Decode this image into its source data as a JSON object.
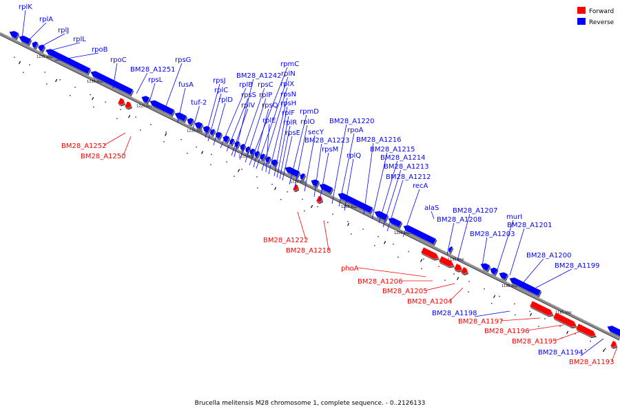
{
  "caption": "Brucella melitensis M28 chromosome 1, complete sequence. - 0..2126133",
  "legend": [
    {
      "label": "Forward",
      "color": "#ff0000"
    },
    {
      "label": "Reverse",
      "color": "#0000ff"
    }
  ],
  "colors": {
    "forward": "#ff0000",
    "reverse": "#0000ff",
    "backbone": "#8c8c8c"
  },
  "kbp_ticks": [
    "1235 kbp",
    "1230 kbp",
    "1225 kbp",
    "1220 kbp",
    "1215 kbp",
    "1210 kbp",
    "1205 kbp",
    "1200 kbp",
    "1195 kbp",
    "1190 kbp",
    "1185 kbp"
  ],
  "reverse_genes": [
    "rplK",
    "rplA",
    "rplJ",
    "rplL",
    "rpoB",
    "rpoC",
    "BM28_A1251",
    "rpsL",
    "rpsG",
    "fusA",
    "tuf-2",
    "rpsJ",
    "rplC",
    "rplD",
    "rplB",
    "rpsS",
    "rplV",
    "BM28_A1242",
    "rpsC",
    "rplP",
    "rpmC",
    "rpsQ",
    "rplN",
    "rplX",
    "rplE",
    "rpsN",
    "rpsH",
    "rplF",
    "rplR",
    "rpsE",
    "rpmD",
    "rplO",
    "secY",
    "BM28_A1223",
    "rpsM",
    "BM28_A1220",
    "rpoA",
    "rplQ",
    "BM28_A1216",
    "BM28_A1215",
    "BM28_A1214",
    "BM28_A1213",
    "BM28_A1212",
    "recA",
    "alaS",
    "BM28_A1208",
    "BM28_A1207",
    "BM28_A1203",
    "murI",
    "BM28_A1201",
    "BM28_A1200",
    "BM28_A1199",
    "BM28_A1198",
    "BM28_A1194"
  ],
  "forward_genes": [
    "BM28_A1252",
    "BM28_A1250",
    "BM28_A1222",
    "BM28_A1218",
    "phoA",
    "BM28_A1206",
    "BM28_A1205",
    "BM28_A1204",
    "BM28_A1197",
    "BM28_A1196",
    "BM28_A1195",
    "BM28_A1193"
  ]
}
